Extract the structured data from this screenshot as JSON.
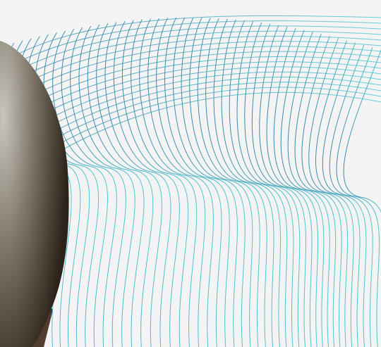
{
  "scene": {
    "background_color": "#f4f4f4",
    "line_color_start": "#2a7fa3",
    "line_color_end": "#3ec2cc",
    "object_colors": {
      "sphere_highlight": "#c9c6bf",
      "sphere_mid": "#7e7668",
      "sphere_shadow": "#2b2219",
      "wood_dark": "#2a1d16",
      "wood_light": "#5a4334"
    },
    "elements": [
      "wireframe-wave-mesh",
      "dark-sphere",
      "wooden-surface"
    ]
  }
}
